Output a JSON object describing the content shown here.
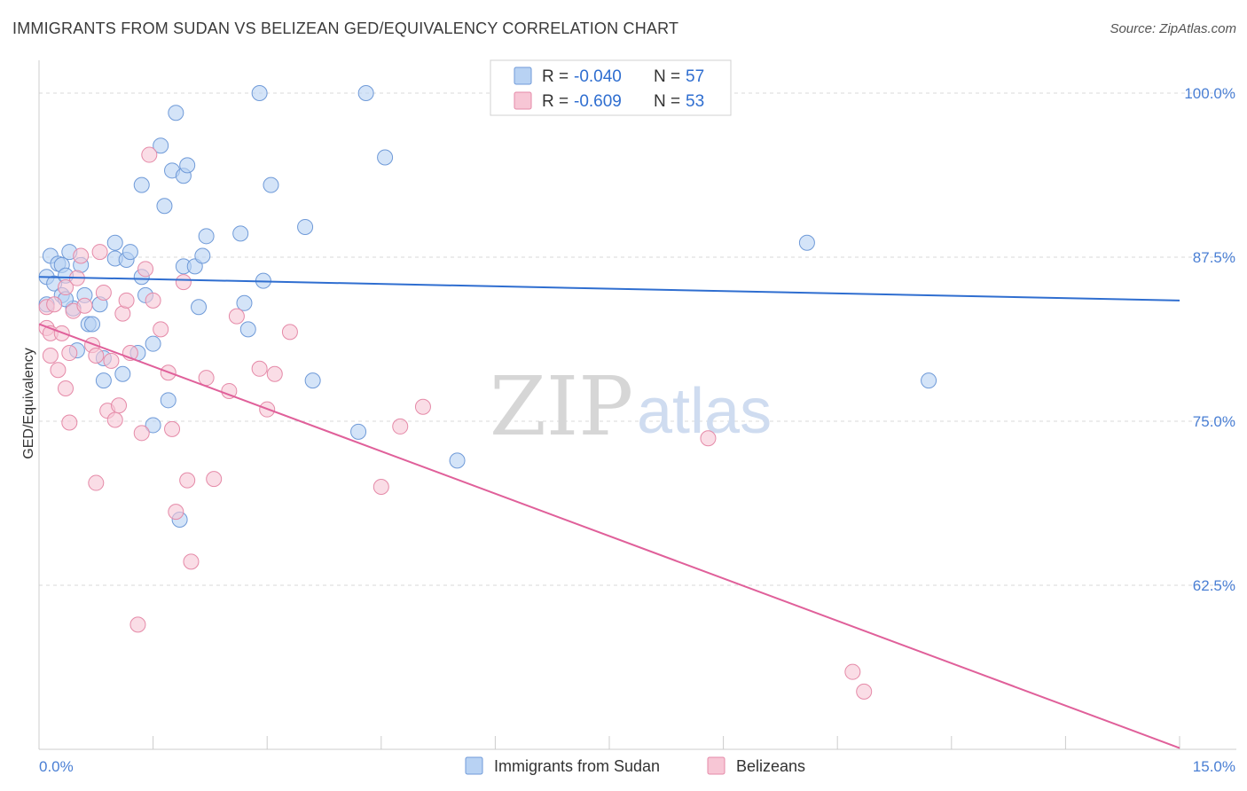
{
  "title": "IMMIGRANTS FROM SUDAN VS BELIZEAN GED/EQUIVALENCY CORRELATION CHART",
  "source": "Source: ZipAtlas.com",
  "watermark": {
    "zip": "ZIP",
    "atlas": "atlas"
  },
  "colors": {
    "sudan_fill": "#b8d2f3",
    "sudan_stroke": "#6f9ad8",
    "sudan_line": "#2f6ed0",
    "belize_fill": "#f7c6d5",
    "belize_stroke": "#e58aa8",
    "belize_line": "#e0609a",
    "axis_text": "#4a7fd4",
    "grid": "#d9d9d9"
  },
  "legend": {
    "rows": [
      {
        "r_label": "R =",
        "r_value": "-0.040",
        "n_label": "N =",
        "n_value": "57"
      },
      {
        "r_label": "R =",
        "r_value": "-0.609",
        "n_label": "N =",
        "n_value": "53"
      }
    ]
  },
  "bottom_legend": [
    "Immigrants from Sudan",
    "Belizeans"
  ],
  "chart_data": {
    "type": "scatter",
    "title": "IMMIGRANTS FROM SUDAN VS BELIZEAN GED/EQUIVALENCY CORRELATION CHART",
    "xlabel": "",
    "ylabel": "GED/Equivalency",
    "xlim": [
      0,
      15
    ],
    "ylim": [
      50,
      102.5
    ],
    "x_tick_labels": [
      "0.0%",
      "15.0%"
    ],
    "y_ticks": [
      62.5,
      75.0,
      87.5,
      100.0
    ],
    "y_tick_labels": [
      "62.5%",
      "75.0%",
      "87.5%",
      "100.0%"
    ],
    "grid": "horizontal dashed",
    "legend_position": "top-center",
    "series": [
      {
        "name": "Immigrants from Sudan",
        "r": -0.04,
        "n": 57,
        "trend": {
          "x": [
            0,
            15
          ],
          "y": [
            86.0,
            84.2
          ]
        },
        "points": [
          [
            0.1,
            86.0
          ],
          [
            0.15,
            87.6
          ],
          [
            0.2,
            85.5
          ],
          [
            0.25,
            87.0
          ],
          [
            0.3,
            86.9
          ],
          [
            0.3,
            84.6
          ],
          [
            0.35,
            86.1
          ],
          [
            0.4,
            87.9
          ],
          [
            0.45,
            83.6
          ],
          [
            0.5,
            80.4
          ],
          [
            0.55,
            86.9
          ],
          [
            0.6,
            84.6
          ],
          [
            0.65,
            82.4
          ],
          [
            0.7,
            82.4
          ],
          [
            0.8,
            83.9
          ],
          [
            0.85,
            79.8
          ],
          [
            0.85,
            78.1
          ],
          [
            1.0,
            88.6
          ],
          [
            1.0,
            87.4
          ],
          [
            1.1,
            78.6
          ],
          [
            1.15,
            87.3
          ],
          [
            1.2,
            87.9
          ],
          [
            1.3,
            80.2
          ],
          [
            1.35,
            86.0
          ],
          [
            1.35,
            93.0
          ],
          [
            1.4,
            84.6
          ],
          [
            1.5,
            74.7
          ],
          [
            1.5,
            80.9
          ],
          [
            1.6,
            96.0
          ],
          [
            1.65,
            91.4
          ],
          [
            1.7,
            76.6
          ],
          [
            1.75,
            94.1
          ],
          [
            1.8,
            98.5
          ],
          [
            1.85,
            67.5
          ],
          [
            1.9,
            93.7
          ],
          [
            1.9,
            86.8
          ],
          [
            1.95,
            94.5
          ],
          [
            2.05,
            86.8
          ],
          [
            2.1,
            83.7
          ],
          [
            2.15,
            87.6
          ],
          [
            2.2,
            89.1
          ],
          [
            2.65,
            89.3
          ],
          [
            2.7,
            84.0
          ],
          [
            2.75,
            82.0
          ],
          [
            2.9,
            100.0
          ],
          [
            2.95,
            85.7
          ],
          [
            3.05,
            93.0
          ],
          [
            3.5,
            89.8
          ],
          [
            3.6,
            78.1
          ],
          [
            4.2,
            74.2
          ],
          [
            4.3,
            100.0
          ],
          [
            4.55,
            95.1
          ],
          [
            5.5,
            72.0
          ],
          [
            10.1,
            88.6
          ],
          [
            11.7,
            78.1
          ],
          [
            0.1,
            83.9
          ],
          [
            0.35,
            84.3
          ]
        ]
      },
      {
        "name": "Belizeans",
        "r": -0.609,
        "n": 53,
        "trend": {
          "x": [
            0,
            15
          ],
          "y": [
            82.4,
            50.1
          ]
        },
        "points": [
          [
            0.1,
            83.7
          ],
          [
            0.1,
            82.1
          ],
          [
            0.15,
            81.7
          ],
          [
            0.2,
            83.9
          ],
          [
            0.25,
            78.9
          ],
          [
            0.3,
            81.7
          ],
          [
            0.35,
            77.5
          ],
          [
            0.35,
            85.2
          ],
          [
            0.4,
            80.2
          ],
          [
            0.4,
            74.9
          ],
          [
            0.45,
            83.4
          ],
          [
            0.5,
            85.9
          ],
          [
            0.55,
            87.6
          ],
          [
            0.6,
            83.8
          ],
          [
            0.7,
            80.8
          ],
          [
            0.75,
            80.0
          ],
          [
            0.8,
            87.9
          ],
          [
            0.85,
            84.8
          ],
          [
            0.9,
            75.8
          ],
          [
            0.95,
            79.6
          ],
          [
            1.0,
            75.1
          ],
          [
            1.05,
            76.2
          ],
          [
            1.1,
            83.2
          ],
          [
            1.15,
            84.2
          ],
          [
            1.2,
            80.2
          ],
          [
            1.3,
            59.5
          ],
          [
            1.35,
            74.1
          ],
          [
            1.4,
            86.6
          ],
          [
            1.45,
            95.3
          ],
          [
            1.5,
            84.2
          ],
          [
            1.6,
            82.0
          ],
          [
            1.7,
            78.7
          ],
          [
            1.75,
            74.4
          ],
          [
            1.8,
            68.1
          ],
          [
            1.9,
            85.6
          ],
          [
            1.95,
            70.5
          ],
          [
            2.0,
            64.3
          ],
          [
            2.2,
            78.3
          ],
          [
            2.3,
            70.6
          ],
          [
            2.5,
            77.3
          ],
          [
            2.6,
            83.0
          ],
          [
            2.9,
            79.0
          ],
          [
            3.0,
            75.9
          ],
          [
            3.1,
            78.6
          ],
          [
            3.3,
            81.8
          ],
          [
            4.5,
            70.0
          ],
          [
            4.75,
            74.6
          ],
          [
            5.05,
            76.1
          ],
          [
            8.8,
            73.7
          ],
          [
            10.7,
            55.9
          ],
          [
            10.85,
            54.4
          ],
          [
            0.75,
            70.3
          ],
          [
            0.15,
            80.0
          ]
        ]
      }
    ]
  }
}
